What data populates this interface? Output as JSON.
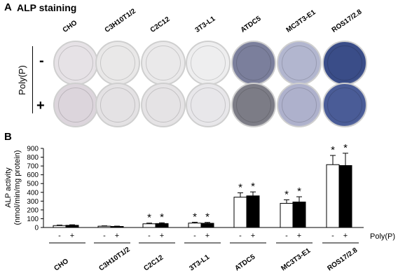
{
  "panel_a": {
    "letter": "A",
    "title": "ALP staining",
    "treatment_label": "Poly(P)",
    "row_minus": "-",
    "row_plus": "+",
    "cell_lines": [
      "CHO",
      "C3H10T1/2",
      "C2C12",
      "3T3-L1",
      "ATDC5",
      "MC3T3-E1",
      "ROS17/2.8"
    ],
    "dish_colors_minus": [
      "#e6e2e6",
      "#e9e8e8",
      "#eae9ea",
      "#eeeeef",
      "#7b7f9c",
      "#b2b6cf",
      "#3a4d88"
    ],
    "dish_colors_plus": [
      "#dcd5dc",
      "#e4e2e4",
      "#e5e3e5",
      "#e8e7ea",
      "#7c7c86",
      "#aeb1cc",
      "#4a5c97"
    ]
  },
  "panel_b": {
    "letter": "B",
    "treatment_label": "Poly(P)"
  },
  "chart_data": {
    "type": "bar",
    "categories": [
      "CHO",
      "C3H10T1/2",
      "C2C12",
      "3T3-L1",
      "ATDC5",
      "MC3T3-E1",
      "ROS17/2.8"
    ],
    "ylabel": "ALP activity (nmol/min/mg protein)",
    "ylabel_line1": "ALP activity",
    "ylabel_line2": "(nmol/min/mg protein)",
    "ylim": [
      0,
      900
    ],
    "yticks": [
      0,
      100,
      200,
      300,
      400,
      500,
      600,
      700,
      800,
      900
    ],
    "x_sublabels": [
      "-",
      "+"
    ],
    "series": [
      {
        "values": [
          22,
          15,
          42,
          50,
          345,
          275,
          715
        ],
        "errors": [
          6,
          4,
          8,
          10,
          50,
          40,
          105
        ],
        "significant": [
          false,
          false,
          true,
          true,
          true,
          true,
          true
        ],
        "fill": "#ffffff"
      },
      {
        "values": [
          25,
          12,
          45,
          48,
          360,
          290,
          705
        ],
        "errors": [
          6,
          4,
          9,
          10,
          45,
          60,
          140
        ],
        "significant": [
          false,
          false,
          true,
          true,
          true,
          true,
          true
        ],
        "fill": "#000000"
      }
    ],
    "significance_marker": "*"
  }
}
